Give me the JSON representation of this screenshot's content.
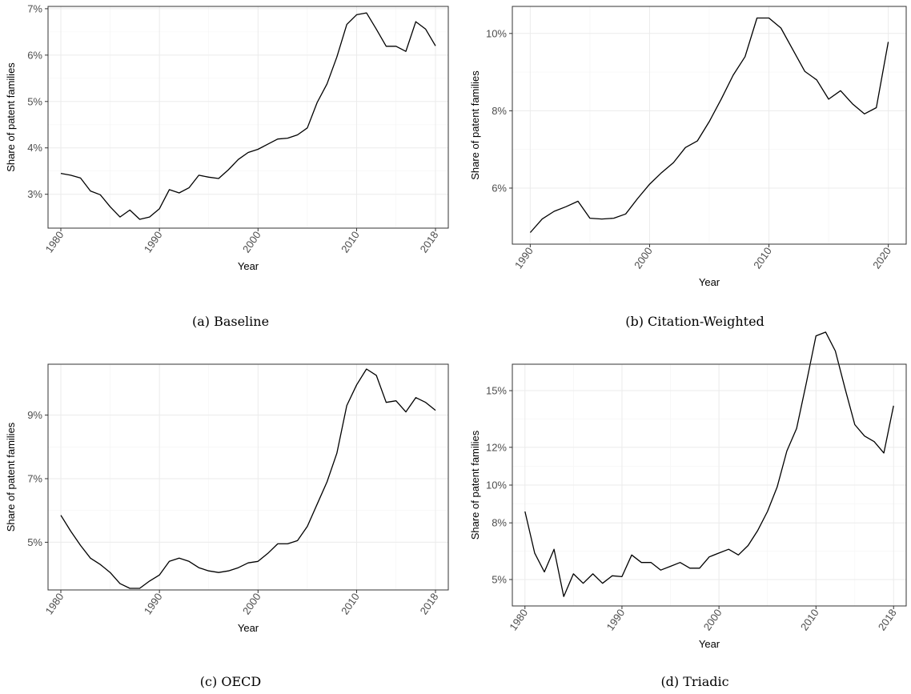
{
  "chart_data": [
    {
      "type": "line",
      "caption": "(a)  Baseline",
      "xlabel": "Year",
      "ylabel": "Share of patent families",
      "xlim": [
        1978.7,
        1019.3
      ],
      "ylim": [
        2.27,
        7.05
      ],
      "xticks": [
        1980,
        1990,
        2000,
        2010,
        2018
      ],
      "yticks": [
        3,
        4,
        5,
        6,
        7
      ],
      "ytick_labels": [
        "3%",
        "4%",
        "5%",
        "6%",
        "7%"
      ],
      "series": [
        {
          "x": [
            1980,
            1981,
            1982,
            1983,
            1984,
            1985,
            1986,
            1987,
            1988,
            1989,
            1990,
            1991,
            1992,
            1993,
            1994,
            1995,
            1996,
            1997,
            1998,
            1999,
            2000,
            2001,
            2002,
            2003,
            2004,
            2005,
            2006,
            2007,
            2008,
            2009,
            2010,
            2011,
            2012,
            2013,
            2014,
            2015,
            2016,
            2017,
            2018
          ],
          "y": [
            3.45,
            3.41,
            3.35,
            3.07,
            2.99,
            2.73,
            2.51,
            2.66,
            2.46,
            2.51,
            2.69,
            3.1,
            3.03,
            3.14,
            3.41,
            3.37,
            3.34,
            3.53,
            3.75,
            3.9,
            3.97,
            4.08,
            4.19,
            4.21,
            4.28,
            4.43,
            4.98,
            5.38,
            5.96,
            6.66,
            6.87,
            6.91,
            6.56,
            6.19,
            6.19,
            6.08,
            6.72,
            6.56,
            6.2
          ]
        }
      ]
    },
    {
      "type": "line",
      "caption": "(b)  Citation-Weighted",
      "xlabel": "Year",
      "ylabel": "Share of patent families",
      "xlim": [
        1988.5,
        2021.5
      ],
      "ylim": [
        4.55,
        10.7
      ],
      "xticks": [
        1990,
        2000,
        2010,
        2020
      ],
      "yticks": [
        6,
        8,
        10
      ],
      "ytick_labels": [
        "6%",
        "8%",
        "10%"
      ],
      "series": [
        {
          "x": [
            1990,
            1991,
            1992,
            1993,
            1994,
            1995,
            1996,
            1997,
            1998,
            1999,
            2000,
            2001,
            2002,
            2003,
            2004,
            2005,
            2006,
            2007,
            2008,
            2009,
            2010,
            2011,
            2012,
            2013,
            2014,
            2015,
            2016,
            2017,
            2018,
            2019,
            2020
          ],
          "y": [
            4.85,
            5.2,
            5.4,
            5.52,
            5.66,
            5.22,
            5.2,
            5.22,
            5.33,
            5.73,
            6.1,
            6.4,
            6.66,
            7.05,
            7.22,
            7.72,
            8.3,
            8.92,
            9.4,
            10.4,
            10.4,
            10.14,
            9.58,
            9.02,
            8.8,
            8.3,
            8.52,
            8.18,
            7.92,
            8.08,
            9.78
          ]
        }
      ]
    },
    {
      "type": "line",
      "caption": "(c)  OECD",
      "xlabel": "Year",
      "ylabel": "Share of patent families",
      "xlim": [
        1978.7,
        2019.3
      ],
      "ylim": [
        3.5,
        10.6
      ],
      "xticks": [
        1980,
        1990,
        2000,
        2010,
        2018
      ],
      "yticks": [
        5,
        7,
        9
      ],
      "ytick_labels": [
        "5%",
        "7%",
        "9%"
      ],
      "series": [
        {
          "x": [
            1980,
            1981,
            1982,
            1983,
            1984,
            1985,
            1986,
            1987,
            1988,
            1989,
            1990,
            1991,
            1992,
            1993,
            1994,
            1995,
            1996,
            1997,
            1998,
            1999,
            2000,
            2001,
            2002,
            2003,
            2004,
            2005,
            2006,
            2007,
            2008,
            2009,
            2010,
            2011,
            2012,
            2013,
            2014,
            2015,
            2016,
            2017,
            2018
          ],
          "y": [
            5.85,
            5.35,
            4.9,
            4.5,
            4.3,
            4.05,
            3.7,
            3.55,
            3.55,
            3.78,
            3.97,
            4.4,
            4.5,
            4.4,
            4.2,
            4.1,
            4.05,
            4.1,
            4.2,
            4.35,
            4.4,
            4.65,
            4.95,
            4.95,
            5.05,
            5.5,
            6.2,
            6.9,
            7.8,
            9.3,
            9.95,
            10.45,
            10.25,
            9.4,
            9.45,
            9.1,
            9.55,
            9.4,
            9.15
          ]
        }
      ]
    },
    {
      "type": "line",
      "caption": "(d)  Triadic",
      "xlabel": "Year",
      "ylabel": "Share of patent families",
      "xlim": [
        1978.7,
        2019.3
      ],
      "ylim": [
        3.6,
        16.4
      ],
      "xticks": [
        1980,
        1990,
        2000,
        2010,
        2018
      ],
      "yticks": [
        5,
        8,
        10,
        12,
        15
      ],
      "ytick_labels": [
        "5%",
        "8%",
        "10%",
        "12%",
        "15%"
      ],
      "series": [
        {
          "x": [
            1980,
            1981,
            1982,
            1983,
            1984,
            1985,
            1986,
            1987,
            1988,
            1989,
            1990,
            1991,
            1992,
            1993,
            1994,
            1995,
            1996,
            1997,
            1998,
            1999,
            2000,
            2001,
            2002,
            2003,
            2004,
            2005,
            2006,
            2007,
            2008,
            2009,
            2010,
            2011,
            2012,
            2013,
            2014,
            2015,
            2016,
            2017,
            2018
          ],
          "y": [
            8.6,
            6.4,
            5.4,
            6.6,
            4.1,
            5.3,
            4.8,
            5.3,
            4.8,
            5.2,
            5.15,
            6.3,
            5.9,
            5.9,
            5.5,
            5.7,
            5.9,
            5.6,
            5.6,
            6.2,
            6.4,
            6.6,
            6.3,
            6.8,
            7.6,
            8.6,
            9.9,
            11.8,
            13.0,
            15.4,
            17.9,
            18.1,
            17.1,
            15.1,
            13.2,
            12.6,
            12.3,
            11.7,
            14.2
          ]
        }
      ]
    }
  ]
}
